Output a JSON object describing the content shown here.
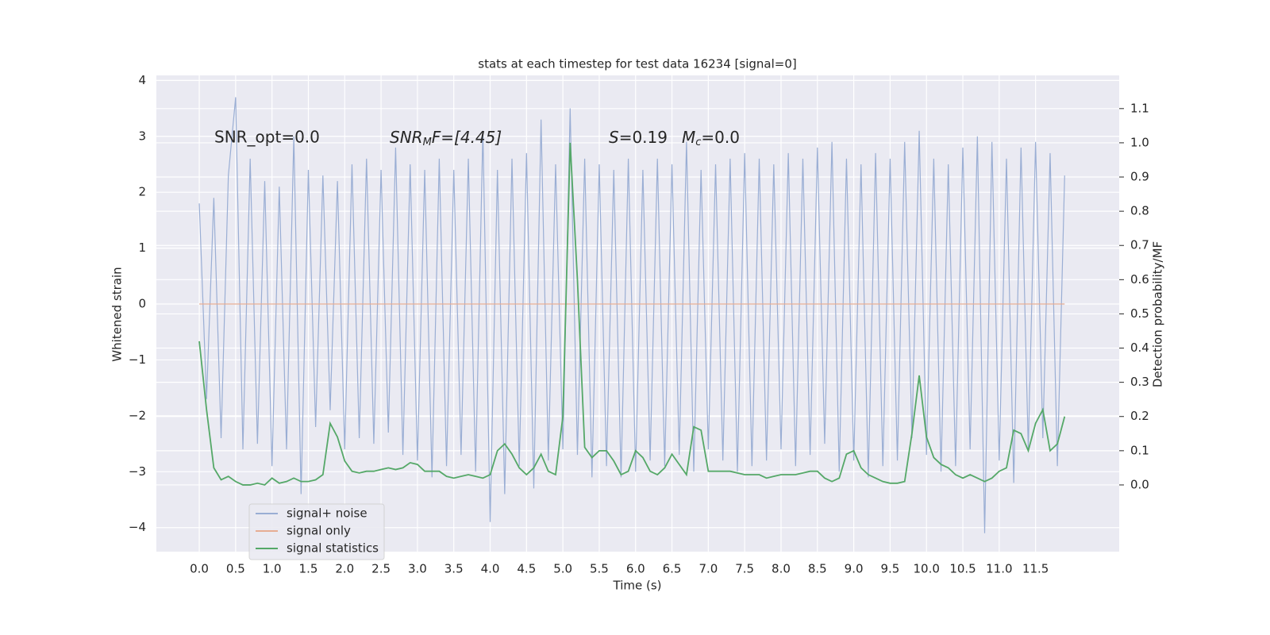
{
  "chart_data": {
    "type": "line",
    "title": "stats at each timestep for test data 16234 [signal=0]",
    "x_label": "Time (s)",
    "y_label": "Whitened strain",
    "y2_label": "Detection probability/MF",
    "annotations": [
      [
        "SNR_opt=0.0"
      ],
      [
        "SNR",
        "M",
        "F=[4.45]"
      ],
      [
        "S",
        "=0.19"
      ],
      [
        "M",
        "c",
        "=0.0"
      ]
    ],
    "x": [
      0,
      0.1,
      0.2,
      0.3,
      0.4,
      0.5,
      0.6,
      0.7,
      0.8,
      0.9,
      1,
      1.1,
      1.2,
      1.3,
      1.4,
      1.5,
      1.6,
      1.7,
      1.8,
      1.9,
      2,
      2.1,
      2.2,
      2.3,
      2.4,
      2.5,
      2.6,
      2.7,
      2.8,
      2.9,
      3,
      3.1,
      3.2,
      3.3,
      3.4,
      3.5,
      3.6,
      3.7,
      3.8,
      3.9,
      4,
      4.1,
      4.2,
      4.3,
      4.4,
      4.5,
      4.6,
      4.7,
      4.8,
      4.9,
      5,
      5.1,
      5.2,
      5.3,
      5.4,
      5.5,
      5.6,
      5.7,
      5.8,
      5.9,
      6,
      6.1,
      6.2,
      6.3,
      6.4,
      6.5,
      6.6,
      6.7,
      6.8,
      6.9,
      7,
      7.1,
      7.2,
      7.3,
      7.4,
      7.5,
      7.6,
      7.7,
      7.8,
      7.9,
      8,
      8.1,
      8.2,
      8.3,
      8.4,
      8.5,
      8.6,
      8.7,
      8.8,
      8.9,
      9,
      9.1,
      9.2,
      9.3,
      9.4,
      9.5,
      9.6,
      9.7,
      9.8,
      9.9,
      10,
      10.1,
      10.2,
      10.3,
      10.4,
      10.5,
      10.6,
      10.7,
      10.8,
      10.9,
      11,
      11.1,
      11.2,
      11.3,
      11.4,
      11.5,
      11.6,
      11.7,
      11.8,
      11.9
    ],
    "series": [
      {
        "name": "signal+ noise",
        "color": "#9aaed4",
        "axis": "y",
        "values": [
          1.8,
          -1.7,
          1.9,
          -2.4,
          2.3,
          3.7,
          -2.6,
          2.6,
          -2.5,
          2.2,
          -2.9,
          2.1,
          -2.6,
          3.0,
          -3.4,
          2.4,
          -2.2,
          2.3,
          -1.9,
          2.2,
          -2.6,
          2.5,
          -2.4,
          2.6,
          -2.5,
          2.4,
          -2.3,
          2.8,
          -2.7,
          2.5,
          -2.8,
          2.4,
          -3.1,
          2.6,
          -2.9,
          2.4,
          -2.7,
          2.6,
          -3.0,
          3.1,
          -3.9,
          2.4,
          -3.4,
          2.6,
          -2.9,
          2.7,
          -3.3,
          3.3,
          -2.8,
          2.5,
          -2.6,
          3.5,
          -2.7,
          2.6,
          -3.1,
          2.5,
          -2.9,
          2.4,
          -3.1,
          2.6,
          -3.0,
          2.4,
          -2.8,
          2.6,
          -2.9,
          2.5,
          -2.7,
          2.9,
          -3.0,
          2.4,
          -2.6,
          2.5,
          -2.8,
          2.6,
          -3.0,
          2.7,
          -2.9,
          2.6,
          -2.8,
          2.5,
          -2.6,
          2.7,
          -2.9,
          2.6,
          -2.7,
          2.8,
          -2.5,
          2.9,
          -3.0,
          2.6,
          -2.8,
          2.5,
          -3.1,
          2.7,
          -2.9,
          2.6,
          -2.8,
          2.9,
          -2.4,
          3.1,
          -2.7,
          2.6,
          -3.0,
          2.5,
          -2.9,
          2.8,
          -2.6,
          3.0,
          -4.1,
          2.9,
          -2.8,
          2.6,
          -3.2,
          2.8,
          -2.6,
          2.9,
          -2.4,
          2.7,
          -2.9,
          2.3
        ]
      },
      {
        "name": "signal only",
        "color": "#e6ad94",
        "axis": "y",
        "values": [
          0,
          0,
          0,
          0,
          0,
          0,
          0,
          0,
          0,
          0,
          0,
          0,
          0,
          0,
          0,
          0,
          0,
          0,
          0,
          0,
          0,
          0,
          0,
          0,
          0,
          0,
          0,
          0,
          0,
          0,
          0,
          0,
          0,
          0,
          0,
          0,
          0,
          0,
          0,
          0,
          0,
          0,
          0,
          0,
          0,
          0,
          0,
          0,
          0,
          0,
          0,
          0,
          0,
          0,
          0,
          0,
          0,
          0,
          0,
          0,
          0,
          0,
          0,
          0,
          0,
          0,
          0,
          0,
          0,
          0,
          0,
          0,
          0,
          0,
          0,
          0,
          0,
          0,
          0,
          0,
          0,
          0,
          0,
          0,
          0,
          0,
          0,
          0,
          0,
          0,
          0,
          0,
          0,
          0,
          0,
          0,
          0,
          0,
          0,
          0,
          0,
          0,
          0,
          0,
          0,
          0,
          0,
          0,
          0,
          0,
          0,
          0,
          0,
          0,
          0,
          0,
          0,
          0,
          0,
          0
        ]
      },
      {
        "name": "signal statistics",
        "color": "#55a868",
        "axis": "y2",
        "values": [
          0.42,
          0.22,
          0.05,
          0.015,
          0.025,
          0.01,
          0,
          0,
          0.005,
          0,
          0.02,
          0.005,
          0.01,
          0.02,
          0.01,
          0.01,
          0.015,
          0.03,
          0.18,
          0.14,
          0.07,
          0.04,
          0.035,
          0.04,
          0.04,
          0.045,
          0.05,
          0.045,
          0.05,
          0.065,
          0.06,
          0.04,
          0.04,
          0.04,
          0.025,
          0.02,
          0.025,
          0.03,
          0.025,
          0.02,
          0.03,
          0.1,
          0.12,
          0.09,
          0.05,
          0.03,
          0.05,
          0.09,
          0.04,
          0.03,
          0.2,
          1.0,
          0.6,
          0.11,
          0.08,
          0.1,
          0.1,
          0.07,
          0.03,
          0.04,
          0.1,
          0.08,
          0.04,
          0.03,
          0.05,
          0.09,
          0.06,
          0.03,
          0.17,
          0.16,
          0.04,
          0.04,
          0.04,
          0.04,
          0.035,
          0.03,
          0.03,
          0.03,
          0.02,
          0.025,
          0.03,
          0.03,
          0.03,
          0.035,
          0.04,
          0.04,
          0.02,
          0.01,
          0.02,
          0.09,
          0.1,
          0.05,
          0.03,
          0.02,
          0.01,
          0.005,
          0.005,
          0.01,
          0.15,
          0.32,
          0.14,
          0.08,
          0.06,
          0.05,
          0.03,
          0.02,
          0.03,
          0.02,
          0.01,
          0.02,
          0.04,
          0.05,
          0.16,
          0.15,
          0.1,
          0.18,
          0.22,
          0.1,
          0.12,
          0.2
        ]
      }
    ],
    "xlim": [
      -0.59,
      12.65
    ],
    "ylim": [
      -4.43,
      4.09
    ],
    "y2lim": [
      -0.195,
      1.197
    ],
    "xticks": [
      {
        "value": 0,
        "label": "0.0"
      },
      0.5,
      {
        "value": 1,
        "label": "1.0"
      },
      1.5,
      {
        "value": 2,
        "label": "2.0"
      },
      2.5,
      {
        "value": 3,
        "label": "3.0"
      },
      3.5,
      {
        "value": 4,
        "label": "4.0"
      },
      4.5,
      {
        "value": 5,
        "label": "5.0"
      },
      5.5,
      {
        "value": 6,
        "label": "6.0"
      },
      6.5,
      {
        "value": 7,
        "label": "7.0"
      },
      7.5,
      {
        "value": 8,
        "label": "8.0"
      },
      8.5,
      {
        "value": 9,
        "label": "9.0"
      },
      9.5,
      {
        "value": 10,
        "label": "10.0"
      },
      10.5,
      {
        "value": 11,
        "label": "11.0"
      },
      11.5
    ],
    "yticks": [
      {
        "value": -4,
        "label": "−4"
      },
      {
        "value": -3,
        "label": "−3"
      },
      {
        "value": -2,
        "label": "−2"
      },
      {
        "value": -1,
        "label": "−1"
      },
      0,
      1,
      2,
      3,
      4
    ],
    "y2ticks": [
      {
        "value": 0,
        "label": "0.0"
      },
      0.1,
      0.2,
      0.3,
      0.4,
      0.5,
      0.6,
      0.7,
      0.8,
      0.9,
      {
        "value": 1,
        "label": "1.0"
      },
      1.1
    ],
    "grid": true,
    "legend": "lower left"
  }
}
